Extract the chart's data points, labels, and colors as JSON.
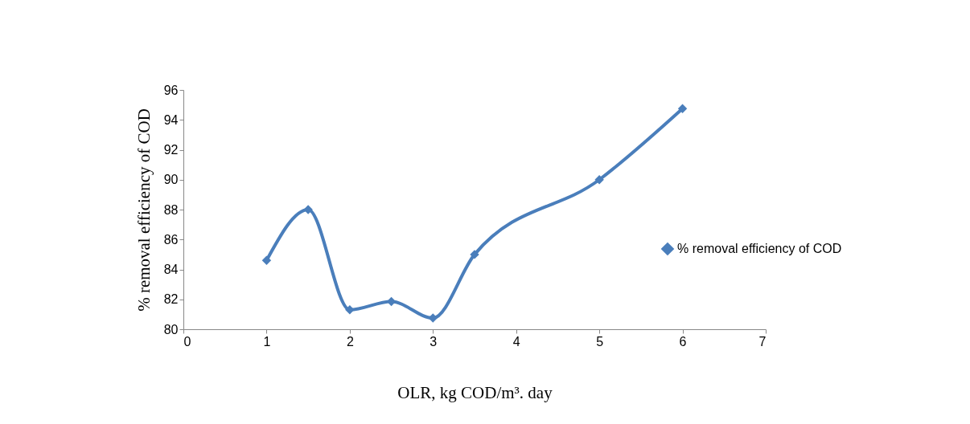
{
  "chart_data": {
    "type": "line",
    "xlabel": "OLR, kg COD/m³. day",
    "ylabel": "% removal efficiency of COD",
    "x": [
      1,
      1.5,
      2,
      2.5,
      3,
      3.5,
      5,
      6
    ],
    "series": [
      {
        "name": "% removal efficiency of COD",
        "color": "#4a7ebb",
        "values": [
          84.6,
          88.0,
          81.3,
          81.85,
          80.75,
          85.0,
          90.0,
          94.75
        ]
      }
    ],
    "xlim": [
      0,
      7
    ],
    "xticks": [
      0,
      1,
      2,
      3,
      4,
      5,
      6,
      7
    ],
    "ylim": [
      80,
      96
    ],
    "yticks": [
      80,
      82,
      84,
      86,
      88,
      90,
      92,
      94,
      96
    ],
    "grid": false,
    "legend": "right",
    "marker": "diamond",
    "line_style": "solid"
  }
}
